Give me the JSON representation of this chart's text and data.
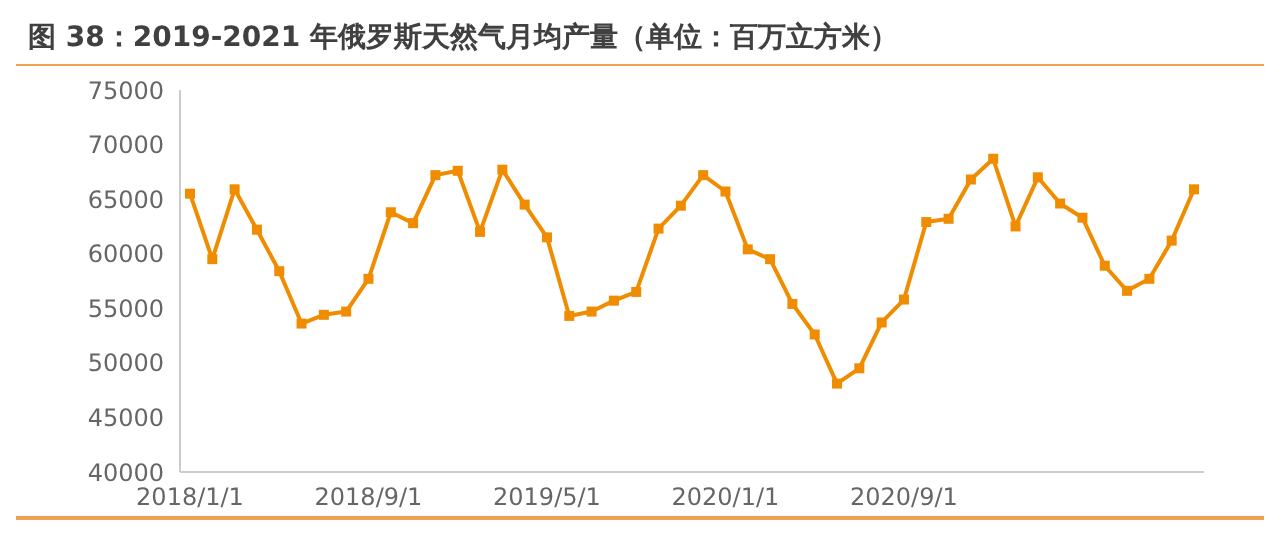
{
  "chart_data": {
    "type": "line",
    "title": "图 38：2019-2021 年俄罗斯天然气月均产量（单位：百万立方米）",
    "categories": [
      "2018/1/1",
      null,
      null,
      null,
      null,
      null,
      null,
      null,
      "2018/9/1",
      null,
      null,
      null,
      null,
      null,
      null,
      null,
      "2019/5/1",
      null,
      null,
      null,
      null,
      null,
      null,
      null,
      "2020/1/1",
      null,
      null,
      null,
      null,
      null,
      null,
      null,
      "2020/9/1",
      null,
      null,
      null,
      null,
      null,
      null,
      null,
      null,
      null,
      null,
      null,
      null,
      null
    ],
    "series": [
      {
        "color": "#f08c00",
        "values": [
          65500,
          59500,
          65900,
          62200,
          58400,
          53600,
          54400,
          54700,
          57700,
          63800,
          62800,
          67200,
          67600,
          62000,
          67700,
          64500,
          61500,
          54300,
          54700,
          55700,
          56500,
          62300,
          64400,
          67200,
          65700,
          60400,
          59500,
          55400,
          52600,
          48100,
          49500,
          53700,
          55800,
          62900,
          63200,
          66800,
          68700,
          62500,
          67000,
          64600,
          63300,
          58900,
          56600,
          57700,
          61200,
          65900
        ]
      }
    ],
    "ylim": [
      40000,
      75000
    ],
    "yticks": [
      40000,
      45000,
      50000,
      55000,
      60000,
      65000,
      70000,
      75000
    ],
    "grid": false,
    "legend": false,
    "marker": "square",
    "line_style": "solid"
  }
}
